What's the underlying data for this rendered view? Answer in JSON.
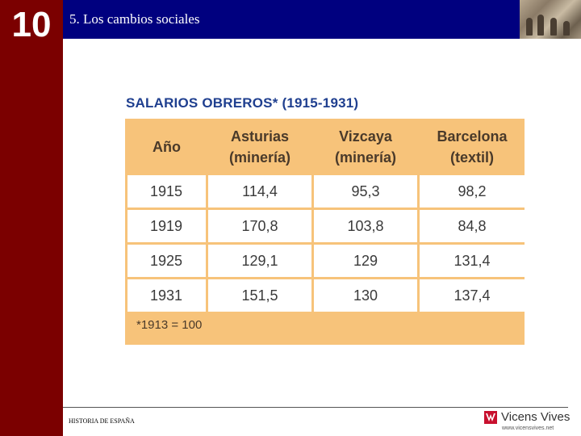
{
  "sidebar": {
    "chapter_number": "10"
  },
  "header": {
    "title": "5. Los cambios sociales"
  },
  "table": {
    "title": "SALARIOS OBREROS* (1915-1931)",
    "headers": [
      {
        "line1": "Año",
        "line2": ""
      },
      {
        "line1": "Asturias",
        "line2": "(minería)"
      },
      {
        "line1": "Vizcaya",
        "line2": "(minería)"
      },
      {
        "line1": "Barcelona",
        "line2": "(textil)"
      }
    ],
    "rows": [
      [
        "1915",
        "114,4",
        "95,3",
        "98,2"
      ],
      [
        "1919",
        "170,8",
        "103,8",
        "84,8"
      ],
      [
        "1925",
        "129,1",
        "129",
        "131,4"
      ],
      [
        "1931",
        "151,5",
        "130",
        "137,4"
      ]
    ],
    "footnote": "*1913 = 100"
  },
  "footer": {
    "left_text": "HISTORIA DE ESPAÑA",
    "brand_name": "Vicens Vives",
    "brand_url": "www.vicensvives.net"
  },
  "colors": {
    "sidebar": "#7b0000",
    "header": "#00007f",
    "table_accent": "#f7c37a",
    "title_blue": "#1f3f8f",
    "brand_red": "#c8102e"
  }
}
